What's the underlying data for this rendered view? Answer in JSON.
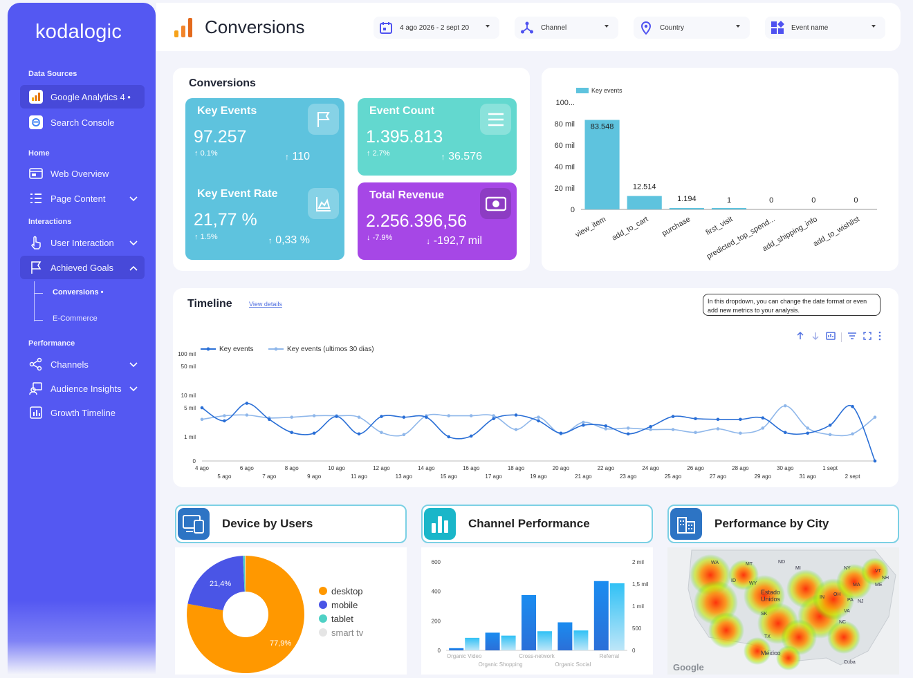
{
  "brand": "kodalogic",
  "sidebar": {
    "data_sources": "Data Sources",
    "ga": "Google Analytics 4 •",
    "sc": "Search Console",
    "home": "Home",
    "web_overview": "Web Overview",
    "page_content": "Page Content",
    "interactions": "Interactions",
    "user_interaction": "User Interaction",
    "achieved_goals": "Achieved Goals",
    "conversions": "Conversions •",
    "ecommerce": "E-Commerce",
    "performance": "Performance",
    "channels": "Channels",
    "audience": "Audience Insights",
    "growth": "Growth Timeline"
  },
  "header": {
    "title": "Conversions",
    "date_range": "4 ago 2026 - 2 sept 20",
    "channel": "Channel",
    "country": "Country",
    "event_name": "Event name"
  },
  "colors": {
    "sidebar": "#5458f2",
    "kpi_blue": "#5ec3de",
    "kpi_teal": "#63d8cf",
    "kpi_purple": "#a647e6",
    "bar": "#5ec3de",
    "line_dark": "#2a6fd6",
    "line_light": "#8fb7ea",
    "pie_desktop": "#ff9800",
    "pie_mobile": "#4a55e6",
    "pie_tablet": "#4fd1c5"
  },
  "kpis": {
    "section_title": "Conversions",
    "key_events": {
      "title": "Key Events",
      "value": "97.257",
      "pct": "0.1%",
      "delta": "110"
    },
    "event_count": {
      "title": "Event Count",
      "value": "1.395.813",
      "pct": "2.7%",
      "delta": "36.576"
    },
    "key_event_rate": {
      "title": "Key Event Rate",
      "value": "21,77 %",
      "pct": "1.5%",
      "delta": "0,33 %"
    },
    "total_revenue": {
      "title": "Total Revenue",
      "value": "2.256.396,56",
      "pct": "-7.9%",
      "delta": "-192,7 mil"
    }
  },
  "chart_data": [
    {
      "type": "bar",
      "legend": "Key events",
      "categories": [
        "view_item",
        "add_to_cart",
        "purchase",
        "first_visit",
        "predicted_top_spend...",
        "add_shipping_info",
        "add_to_wishlist"
      ],
      "values": [
        83548,
        12514,
        1194,
        1,
        0,
        0,
        0
      ],
      "labels": [
        "83.548",
        "12.514",
        "1.194",
        "1",
        "0",
        "0",
        "0"
      ],
      "y_ticks": [
        "0",
        "20 mil",
        "40 mil",
        "60 mil",
        "80 mil",
        "100..."
      ],
      "ylim": [
        0,
        100000
      ]
    },
    {
      "type": "line",
      "title": "Timeline",
      "series": [
        {
          "name": "Key events",
          "values": [
            5000,
            3200,
            6800,
            3400,
            1600,
            1500,
            3800,
            1400,
            3800,
            3700,
            3700,
            1000,
            1100,
            3500,
            4000,
            3200,
            1500,
            2600,
            2500,
            1400,
            2400,
            3800,
            3500,
            3400,
            3400,
            3600,
            1600,
            1500,
            2600,
            5500,
            0
          ]
        },
        {
          "name": "Key events (ultimos 30 dias)",
          "values": [
            3400,
            3900,
            4000,
            3600,
            3700,
            3900,
            3900,
            3700,
            1600,
            1300,
            3900,
            3900,
            3900,
            3900,
            2000,
            3700,
            1400,
            3000,
            2100,
            2200,
            2000,
            2000,
            1600,
            2100,
            1500,
            2200,
            5800,
            2200,
            1300,
            1400,
            3700
          ]
        }
      ],
      "x_ticks_top": [
        "4 ago",
        "6 ago",
        "8 ago",
        "10 ago",
        "12 ago",
        "14 ago",
        "16 ago",
        "18 ago",
        "20 ago",
        "22 ago",
        "24 ago",
        "26 ago",
        "28 ago",
        "30 ago",
        "1 sept"
      ],
      "x_ticks_bottom": [
        "5 ago",
        "7 ago",
        "9 ago",
        "11 ago",
        "13 ago",
        "15 ago",
        "17 ago",
        "19 ago",
        "21 ago",
        "23 ago",
        "25 ago",
        "27 ago",
        "29 ago",
        "31 ago",
        "2 sept"
      ],
      "y_ticks": [
        "0",
        "1 mil",
        "5 mil",
        "10 mil",
        "50 mil",
        "100 mil"
      ]
    },
    {
      "type": "pie",
      "categories": [
        "desktop",
        "mobile",
        "tablet",
        "smart tv"
      ],
      "values": [
        77.9,
        21.4,
        0.5,
        0.2
      ],
      "labels": [
        "77,9%",
        "21,4%"
      ]
    },
    {
      "type": "bar",
      "categories": [
        "Organic Video",
        "Organic Shopping",
        "Cross-network",
        "Organic Social",
        "Referral"
      ],
      "series": [
        {
          "name": "dark",
          "values": [
            15,
            120,
            375,
            190,
            470
          ]
        },
        {
          "name": "light",
          "values": [
            85,
            100,
            130,
            135,
            455
          ]
        }
      ],
      "y_left_ticks": [
        "0",
        "200",
        "400",
        "600"
      ],
      "y_right_ticks": [
        "0",
        "500",
        "1 mil",
        "1,5 mil",
        "2 mil"
      ],
      "ylim": [
        0,
        600
      ]
    }
  ],
  "timeline": {
    "title": "Timeline",
    "link": "View details",
    "tooltip": "In this dropdown, you can change the date format or even add new metrics to your analysis."
  },
  "panels": {
    "device": "Device by Users",
    "channel": "Channel Performance",
    "city": "Performance by City"
  },
  "map": {
    "labels": [
      "ND",
      "MT",
      "WA",
      "ID",
      "WY",
      "MI",
      "NY",
      "VT",
      "NH",
      "ME",
      "MA",
      "Estado Unidos",
      "IN",
      "OH",
      "PA",
      "NJ",
      "VA",
      "NC",
      "SK",
      "TX",
      "México",
      "Cuba"
    ],
    "google": "Google"
  }
}
